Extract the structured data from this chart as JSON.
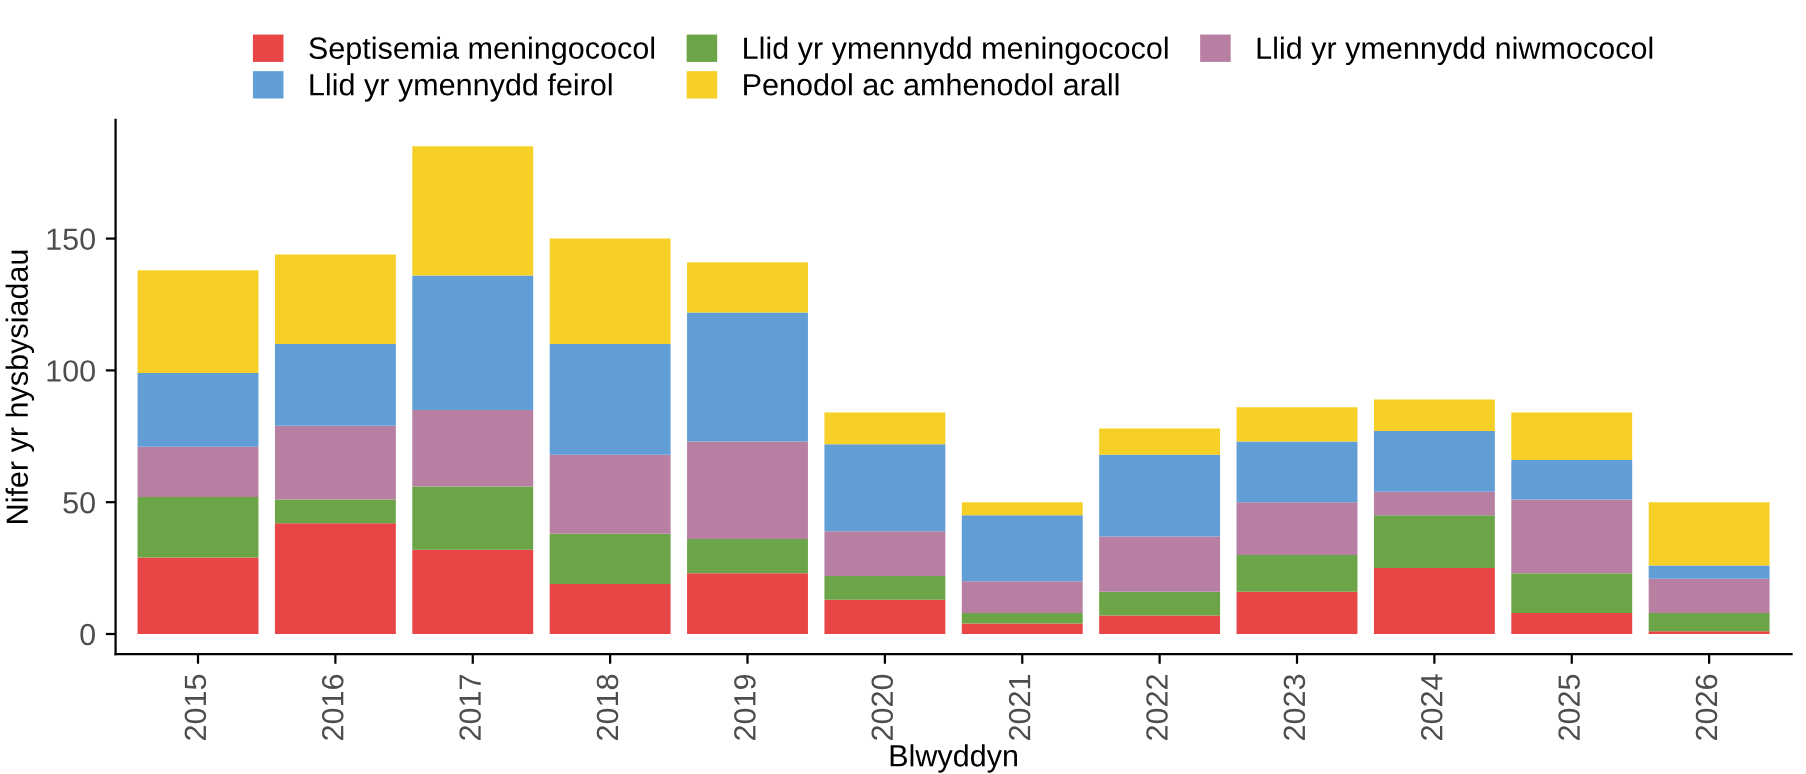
{
  "chart_data": {
    "type": "bar",
    "stacked": true,
    "xlabel": "Blwyddyn",
    "ylabel": "Nifer yr hysbysiadau",
    "categories": [
      "2015",
      "2016",
      "2017",
      "2018",
      "2019",
      "2020",
      "2021",
      "2022",
      "2023",
      "2024",
      "2025",
      "2026"
    ],
    "series": [
      {
        "name": "Septisemia meningococol",
        "color": "#e84546",
        "values": [
          29,
          42,
          32,
          19,
          23,
          13,
          4,
          7,
          16,
          25,
          8,
          1
        ]
      },
      {
        "name": "Llid yr ymennydd meningococol",
        "color": "#6ca547",
        "values": [
          23,
          9,
          24,
          19,
          13,
          9,
          4,
          9,
          14,
          20,
          15,
          7
        ]
      },
      {
        "name": "Llid yr ymennydd niwmococol",
        "color": "#b77fa2",
        "values": [
          19,
          28,
          29,
          30,
          37,
          17,
          12,
          21,
          20,
          9,
          28,
          13
        ]
      },
      {
        "name": "Llid yr ymennydd feirol",
        "color": "#609ed5",
        "values": [
          28,
          31,
          51,
          42,
          49,
          33,
          25,
          31,
          23,
          23,
          15,
          5
        ]
      },
      {
        "name": "Penodol ac amhenodol arall",
        "color": "#f6d027",
        "values": [
          39,
          34,
          49,
          40,
          19,
          12,
          5,
          10,
          13,
          12,
          18,
          24
        ]
      }
    ],
    "ylim": [
      -7.6,
      195
    ],
    "yticks": [
      0,
      50,
      100,
      150
    ],
    "grid": false,
    "legend": "top"
  }
}
